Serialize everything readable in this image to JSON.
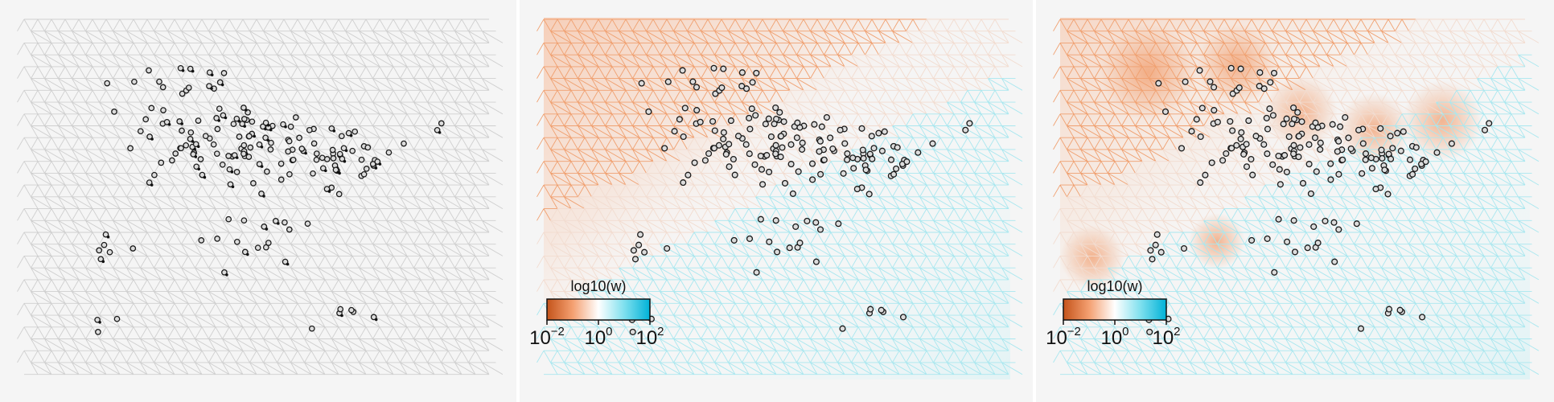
{
  "colorbar": {
    "title": "log10(w)",
    "ticks": [
      {
        "base": "10",
        "exp": "−2"
      },
      {
        "base": "10",
        "exp": "0"
      },
      {
        "base": "10",
        "exp": "2"
      }
    ],
    "colors": [
      "#c4531a",
      "#f4a071",
      "#ffffff",
      "#7fe0ee",
      "#00b2d8"
    ]
  },
  "colors": {
    "grid_gray": "#cfcfcf",
    "grid_orange": "#f0a070",
    "grid_cyan": "#a9e7ef",
    "point_stroke": "#1a1a1a",
    "point_fill_center": "#ffffff",
    "point_fill_edge": "#9a9a9a",
    "panel_bg": "#f5f5f5"
  },
  "panels": [
    {
      "id": "left",
      "shading": "none",
      "points": "clustered"
    },
    {
      "id": "middle",
      "shading": "smooth",
      "points": "normal"
    },
    {
      "id": "right",
      "shading": "local",
      "points": "normal"
    }
  ]
}
